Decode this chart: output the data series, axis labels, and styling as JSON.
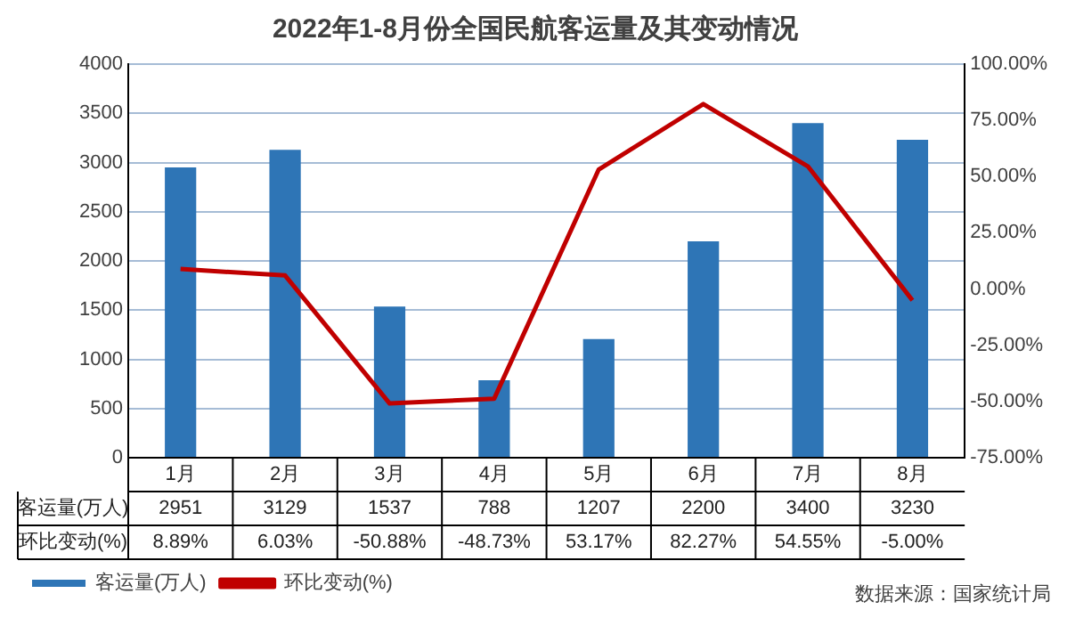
{
  "chart_data": {
    "type": "bar",
    "title": "2022年1-8月份全国民航客运量及其变动情况",
    "categories": [
      "1月",
      "2月",
      "3月",
      "4月",
      "5月",
      "6月",
      "7月",
      "8月"
    ],
    "series": [
      {
        "name": "客运量(万人)",
        "color": "#2e75b6",
        "values": [
          2951,
          3129,
          1537,
          788,
          1207,
          2200,
          3400,
          3230
        ],
        "value_labels": [
          "2951",
          "3129",
          "1537",
          "788",
          "1207",
          "2200",
          "3400",
          "3230"
        ]
      },
      {
        "name": "环比变动(%)",
        "type": "line",
        "axis": "y2",
        "color": "#c00000",
        "values": [
          8.89,
          6.03,
          -50.88,
          -48.73,
          53.17,
          82.27,
          54.55,
          -5.0
        ],
        "value_labels": [
          "8.89%",
          "6.03%",
          "-50.88%",
          "-48.73%",
          "53.17%",
          "82.27%",
          "54.55%",
          "-5.00%"
        ]
      }
    ],
    "ylim": [
      0,
      4000
    ],
    "yticks": [
      0,
      500,
      1000,
      1500,
      2000,
      2500,
      3000,
      3500,
      4000
    ],
    "y2lim": [
      -75,
      100
    ],
    "y2ticks": [
      {
        "value": -75,
        "label": "-75.00%"
      },
      {
        "value": -50,
        "label": "-50.00%"
      },
      {
        "value": -25,
        "label": "-25.00%"
      },
      {
        "value": 0,
        "label": "0.00%"
      },
      {
        "value": 25,
        "label": "25.00%"
      },
      {
        "value": 50,
        "label": "50.00%"
      },
      {
        "value": 75,
        "label": "75.00%"
      },
      {
        "value": 100,
        "label": "100.00%"
      }
    ],
    "grid": "y",
    "legend": "bottom left",
    "marker": "none",
    "line_style": "solid",
    "annotations": [
      "数据来源：国家统计局"
    ]
  }
}
